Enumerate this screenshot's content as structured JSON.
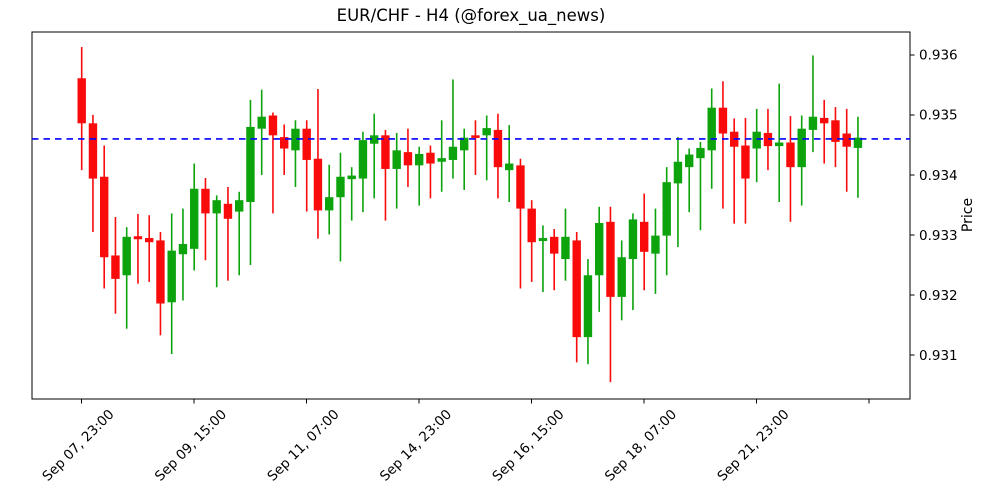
{
  "chart_data": {
    "type": "candlestick",
    "title": "EUR/CHF - H4 (@forex_ua_news)",
    "symbol": "EUR/CHF",
    "timeframe": "H4",
    "watermark": "@forex_ua_news",
    "ylabel": "Price",
    "ylabel_side": "right",
    "grid": false,
    "legend_position": "none",
    "ylim": [
      0.93027,
      0.93638
    ],
    "yticks": {
      "values": [
        0.931,
        0.932,
        0.933,
        0.934,
        0.935,
        0.936
      ],
      "labels": [
        "0.931",
        "0.932",
        "0.933",
        "0.934",
        "0.935",
        "0.936"
      ]
    },
    "xticks": {
      "positions": [
        0,
        10,
        20,
        30,
        40,
        50,
        60,
        70
      ],
      "labels": [
        "Sep 07, 23:00",
        "Sep 09, 15:00",
        "Sep 11, 07:00",
        "Sep 14, 23:00",
        "Sep 16, 15:00",
        "Sep 18, 07:00",
        "Sep 21, 23:00",
        ""
      ]
    },
    "hline": {
      "value": 0.9346,
      "color": "#0000ff",
      "style": "dashed",
      "label": "current-price-line"
    },
    "up_color": "#0ca30c",
    "down_color": "#f90b0b",
    "spine_color": "#000000",
    "ohlc_note": "each candle is [open, high, low, close]",
    "candles": [
      [
        0.93561,
        0.93613,
        0.93408,
        0.93486
      ],
      [
        0.93486,
        0.935,
        0.93305,
        0.93394
      ],
      [
        0.93397,
        0.93449,
        0.93211,
        0.93263
      ],
      [
        0.93266,
        0.9333,
        0.93169,
        0.93227
      ],
      [
        0.93233,
        0.93313,
        0.93144,
        0.93297
      ],
      [
        0.93298,
        0.93335,
        0.93219,
        0.93293
      ],
      [
        0.93295,
        0.93333,
        0.93222,
        0.93288
      ],
      [
        0.93291,
        0.93305,
        0.93133,
        0.93186
      ],
      [
        0.93188,
        0.93336,
        0.93102,
        0.93274
      ],
      [
        0.93268,
        0.93344,
        0.93191,
        0.93285
      ],
      [
        0.93277,
        0.93419,
        0.93241,
        0.93377
      ],
      [
        0.93377,
        0.93395,
        0.93258,
        0.93336
      ],
      [
        0.93336,
        0.93366,
        0.93213,
        0.93358
      ],
      [
        0.93352,
        0.9338,
        0.93224,
        0.93327
      ],
      [
        0.93339,
        0.93372,
        0.93233,
        0.93358
      ],
      [
        0.93355,
        0.93525,
        0.9325,
        0.9348
      ],
      [
        0.93477,
        0.93542,
        0.934,
        0.93497
      ],
      [
        0.93499,
        0.93504,
        0.93336,
        0.93466
      ],
      [
        0.93463,
        0.93484,
        0.934,
        0.93444
      ],
      [
        0.93441,
        0.93491,
        0.9338,
        0.93477
      ],
      [
        0.93477,
        0.93491,
        0.93339,
        0.93425
      ],
      [
        0.93427,
        0.93543,
        0.93294,
        0.93341
      ],
      [
        0.93341,
        0.93417,
        0.93301,
        0.93363
      ],
      [
        0.93363,
        0.93437,
        0.93256,
        0.93397
      ],
      [
        0.93393,
        0.93413,
        0.93324,
        0.93399
      ],
      [
        0.93394,
        0.93472,
        0.93338,
        0.93458
      ],
      [
        0.93452,
        0.93502,
        0.93361,
        0.93466
      ],
      [
        0.93466,
        0.93475,
        0.93324,
        0.9341
      ],
      [
        0.9341,
        0.9347,
        0.93344,
        0.93441
      ],
      [
        0.93438,
        0.93477,
        0.9338,
        0.93416
      ],
      [
        0.93416,
        0.93447,
        0.93349,
        0.93435
      ],
      [
        0.93437,
        0.93449,
        0.93361,
        0.93419
      ],
      [
        0.93422,
        0.93491,
        0.93372,
        0.93428
      ],
      [
        0.93425,
        0.93559,
        0.93394,
        0.93447
      ],
      [
        0.93441,
        0.93477,
        0.93375,
        0.93462
      ],
      [
        0.93466,
        0.93491,
        0.934,
        0.93462
      ],
      [
        0.93466,
        0.93499,
        0.93391,
        0.93478
      ],
      [
        0.93475,
        0.93502,
        0.93361,
        0.93413
      ],
      [
        0.93408,
        0.93483,
        0.93355,
        0.93419
      ],
      [
        0.93416,
        0.93427,
        0.93211,
        0.93344
      ],
      [
        0.93344,
        0.93358,
        0.93222,
        0.93288
      ],
      [
        0.9329,
        0.93316,
        0.93205,
        0.93295
      ],
      [
        0.93297,
        0.9331,
        0.93208,
        0.93269
      ],
      [
        0.9326,
        0.93344,
        0.93224,
        0.93297
      ],
      [
        0.93291,
        0.93305,
        0.93088,
        0.9313
      ],
      [
        0.9313,
        0.9326,
        0.93085,
        0.93233
      ],
      [
        0.93233,
        0.93347,
        0.93172,
        0.9332
      ],
      [
        0.93322,
        0.93347,
        0.93055,
        0.93197
      ],
      [
        0.93197,
        0.93291,
        0.93158,
        0.93263
      ],
      [
        0.9326,
        0.93336,
        0.93175,
        0.93326
      ],
      [
        0.93322,
        0.93369,
        0.93208,
        0.93272
      ],
      [
        0.93269,
        0.93344,
        0.93202,
        0.93299
      ],
      [
        0.93299,
        0.93413,
        0.93233,
        0.93388
      ],
      [
        0.93386,
        0.93463,
        0.9328,
        0.93422
      ],
      [
        0.93413,
        0.93444,
        0.93338,
        0.93434
      ],
      [
        0.93428,
        0.93455,
        0.93308,
        0.93445
      ],
      [
        0.93441,
        0.93544,
        0.93377,
        0.93512
      ],
      [
        0.93512,
        0.93556,
        0.93344,
        0.93469
      ],
      [
        0.93472,
        0.93494,
        0.93319,
        0.93447
      ],
      [
        0.93449,
        0.93495,
        0.93319,
        0.93394
      ],
      [
        0.93444,
        0.9351,
        0.93388,
        0.93472
      ],
      [
        0.9347,
        0.9351,
        0.93408,
        0.93448
      ],
      [
        0.93448,
        0.93552,
        0.93355,
        0.93454
      ],
      [
        0.93454,
        0.93498,
        0.93322,
        0.93413
      ],
      [
        0.93413,
        0.93499,
        0.93349,
        0.93477
      ],
      [
        0.93475,
        0.93599,
        0.93438,
        0.93497
      ],
      [
        0.93495,
        0.93525,
        0.93419,
        0.93486
      ],
      [
        0.93491,
        0.93513,
        0.93413,
        0.93455
      ],
      [
        0.93469,
        0.9351,
        0.93372,
        0.93447
      ],
      [
        0.93445,
        0.93497,
        0.93362,
        0.93462
      ]
    ]
  }
}
